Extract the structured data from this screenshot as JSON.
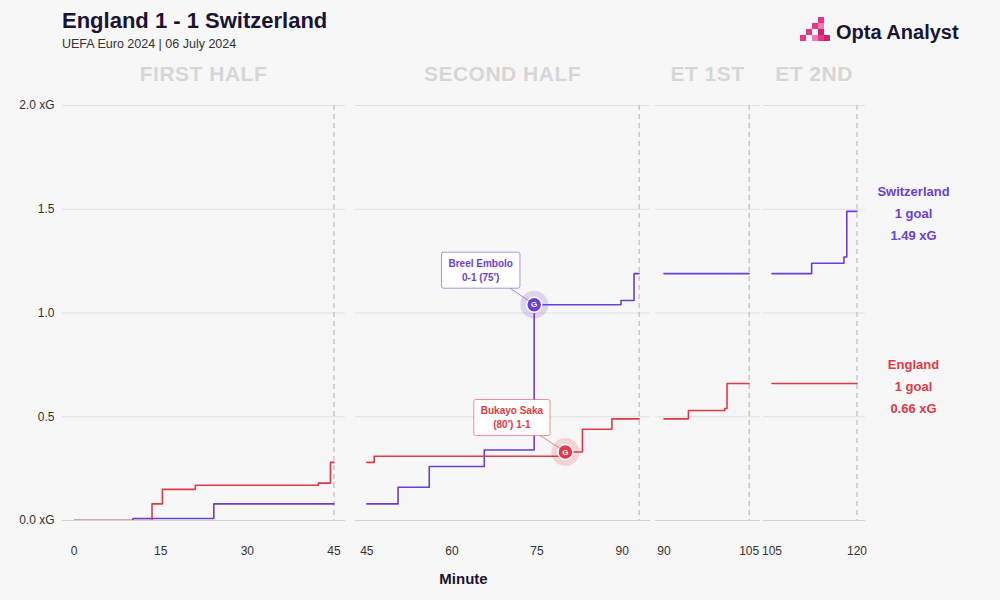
{
  "chart_data": {
    "type": "line",
    "line_style": "step",
    "grid": true,
    "title": "England 1 - 1 Switzerland",
    "subtitle": "UEFA Euro 2024 | 06 July 2024",
    "source": "Opta Analyst",
    "x_label": "Minute",
    "ylim": [
      0,
      2
    ],
    "yticks": [
      {
        "value": 0,
        "label": "0.0 xG"
      },
      {
        "value": 0.5,
        "label": "0.5"
      },
      {
        "value": 1,
        "label": "1.0"
      },
      {
        "value": 1.5,
        "label": "1.5"
      },
      {
        "value": 2,
        "label": "2.0 xG"
      }
    ],
    "series": [
      {
        "name": "Switzerland",
        "color": "#6a3fd3",
        "labels": [
          "1 goal",
          "1.49 xG"
        ]
      },
      {
        "name": "England",
        "color": "#df3a46",
        "labels": [
          "1 goal",
          "0.66 xG"
        ]
      }
    ],
    "panels": [
      {
        "title": "FIRST HALF",
        "xlim": [
          -2,
          47
        ],
        "xticks": [
          0,
          15,
          30,
          45
        ],
        "period_end": 45,
        "series": [
          {
            "name": "Switzerland",
            "x": [
              0,
              10.2,
              24.2,
              45
            ],
            "values": [
              0,
              0.01,
              0.08,
              0.08
            ]
          },
          {
            "name": "England",
            "x": [
              0,
              13.5,
              15.3,
              21,
              42.3,
              44.4,
              45
            ],
            "values": [
              0,
              0.08,
              0.15,
              0.17,
              0.18,
              0.28,
              0.28
            ]
          }
        ]
      },
      {
        "title": "SECOND HALF",
        "xlim": [
          43,
          95
        ],
        "xticks": [
          45,
          60,
          75,
          90
        ],
        "period_end": 93,
        "series": [
          {
            "name": "Switzerland",
            "x": [
              45,
              50.5,
              56,
              65.7,
              74.5,
              89.8,
              92.1,
              93
            ],
            "values": [
              0.08,
              0.16,
              0.26,
              0.34,
              1.04,
              1.06,
              1.19,
              1.19
            ]
          },
          {
            "name": "England",
            "x": [
              45,
              46.3,
              80,
              83,
              88.2,
              93
            ],
            "values": [
              0.28,
              0.31,
              0.33,
              0.44,
              0.49,
              0.49
            ]
          }
        ],
        "annotations": [
          {
            "series": "Switzerland",
            "x": 74.5,
            "y": 1.04,
            "badge": "G",
            "lines": [
              "Breel Embolo",
              "0-1 (75')"
            ]
          },
          {
            "series": "England",
            "x": 80,
            "y": 0.33,
            "badge": "G",
            "lines": [
              "Bukayo Saka",
              "(80') 1-1"
            ]
          }
        ]
      },
      {
        "title": "ET 1ST",
        "xlim": [
          88.5,
          107
        ],
        "xticks": [
          90,
          105
        ],
        "period_end": 105,
        "series": [
          {
            "name": "Switzerland",
            "x": [
              90,
              105
            ],
            "values": [
              1.19,
              1.19
            ]
          },
          {
            "name": "England",
            "x": [
              90,
              94.3,
              100.7,
              101.1,
              105
            ],
            "values": [
              0.49,
              0.53,
              0.54,
              0.66,
              0.66
            ]
          }
        ]
      },
      {
        "title": "ET 2ND",
        "xlim": [
          103.5,
          121.5
        ],
        "xticks": [
          105,
          120
        ],
        "period_end": 120,
        "series": [
          {
            "name": "Switzerland",
            "x": [
              105,
              112,
              117.7,
              118.2,
              120
            ],
            "values": [
              1.19,
              1.24,
              1.27,
              1.49,
              1.49
            ]
          },
          {
            "name": "England",
            "x": [
              105,
              120
            ],
            "values": [
              0.66,
              0.66
            ]
          }
        ]
      }
    ]
  }
}
